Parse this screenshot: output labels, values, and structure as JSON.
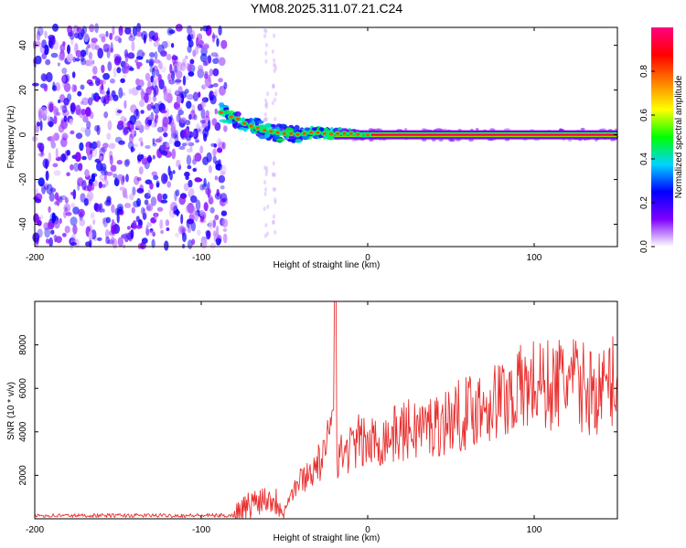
{
  "chart_data": [
    {
      "type": "heatmap",
      "title": "YM08.2025.311.07.21.C24",
      "xlabel": "Height of straight line (km)",
      "ylabel": "Frequency (Hz)",
      "xlim": [
        -200,
        150
      ],
      "ylim": [
        -50,
        48
      ],
      "xticks": [
        "-200",
        "-100",
        "0",
        "100"
      ],
      "yticks": [
        "-40",
        "-20",
        "0",
        "20",
        "40"
      ],
      "colorbar": {
        "label": "Normalized spectral amplitude",
        "range": [
          0.0,
          1.0
        ],
        "ticks": [
          "0.0",
          "0.2",
          "0.4",
          "0.6",
          "0.8"
        ],
        "colormap": [
          "#ffffff",
          "#7f00ff",
          "#0000ff",
          "#00d4ff",
          "#00ff00",
          "#ffff00",
          "#ff8000",
          "#ff0000",
          "#ff0080"
        ]
      },
      "regions": [
        {
          "x_range": [
            -200,
            -85
          ],
          "frequency_range": [
            -50,
            48
          ],
          "amplitude": 0.15
        },
        {
          "x_range": [
            -85,
            -20
          ],
          "frequency_range": [
            -6,
            12
          ],
          "amplitude": 0.35
        },
        {
          "x_range": [
            -20,
            150
          ],
          "frequency": 0,
          "amplitude": 0.9
        }
      ],
      "ridge": {
        "x": [
          -88,
          -82,
          -78,
          -74,
          -70,
          -66,
          -62,
          -58,
          -54,
          -50,
          -46,
          -42,
          -38,
          -34,
          -30,
          -26,
          -22,
          -18,
          -14,
          -10,
          -6,
          -2,
          0,
          20,
          40,
          60,
          80,
          100,
          120,
          150
        ],
        "y": [
          10,
          8,
          7,
          5,
          4,
          3,
          2,
          1.5,
          1,
          0.5,
          0.5,
          0.2,
          0.5,
          1,
          1,
          0.5,
          0.3,
          0.5,
          0.5,
          0.5,
          0.2,
          0,
          0,
          0,
          0,
          0,
          0,
          0,
          0,
          0
        ]
      }
    },
    {
      "type": "line",
      "xlabel": "Height of straight line (km)",
      "ylabel": "SNR (10 * v/v)",
      "xlim": [
        -200,
        150
      ],
      "ylim": [
        0,
        10000
      ],
      "xticks": [
        "-200",
        "-100",
        "0",
        "100"
      ],
      "yticks": [
        "2000",
        "4000",
        "6000",
        "8000"
      ],
      "color": "#e83030",
      "x": [
        -200,
        -180,
        -160,
        -140,
        -120,
        -100,
        -90,
        -80,
        -75,
        -70,
        -65,
        -60,
        -55,
        -50,
        -45,
        -40,
        -35,
        -30,
        -25,
        -22,
        -20,
        -18,
        -15,
        -10,
        -5,
        0,
        10,
        20,
        30,
        40,
        50,
        60,
        70,
        80,
        90,
        100,
        110,
        120,
        130,
        140,
        150
      ],
      "y": [
        150,
        150,
        150,
        150,
        150,
        150,
        150,
        150,
        350,
        700,
        900,
        1000,
        800,
        500,
        1300,
        1800,
        2100,
        2500,
        2900,
        5000,
        10000,
        2800,
        3000,
        3300,
        3600,
        3400,
        3700,
        4000,
        4200,
        4300,
        4600,
        4900,
        5300,
        5500,
        5900,
        6200,
        6100,
        6400,
        6000,
        5800,
        6600
      ]
    }
  ]
}
